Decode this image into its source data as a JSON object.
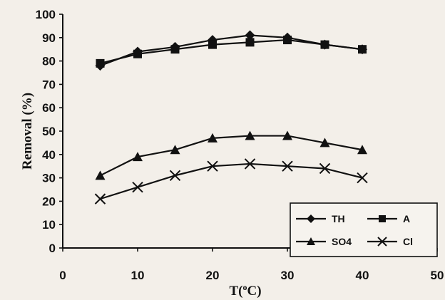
{
  "chart_data": {
    "type": "line",
    "title": "",
    "xlabel_prefix": "T(",
    "xlabel_degree": "o",
    "xlabel_suffix": "C)",
    "ylabel": "Removal (%)",
    "xlim": [
      0,
      50
    ],
    "ylim": [
      0,
      100
    ],
    "x_ticks": [
      0,
      10,
      20,
      30,
      40,
      50
    ],
    "y_ticks": [
      0,
      10,
      20,
      30,
      40,
      50,
      60,
      70,
      80,
      90,
      100
    ],
    "grid": false,
    "legend_position": "bottom-right",
    "x": [
      5,
      10,
      15,
      20,
      25,
      30,
      35,
      40
    ],
    "series": [
      {
        "name": "TH",
        "marker": "diamond",
        "values": [
          78,
          84,
          86,
          89,
          91,
          90,
          87,
          85
        ]
      },
      {
        "name": "A",
        "marker": "square",
        "values": [
          79,
          83,
          85,
          87,
          88,
          89,
          87,
          85
        ]
      },
      {
        "name": "SO4",
        "marker": "triangle",
        "values": [
          31,
          39,
          42,
          47,
          48,
          48,
          45,
          42
        ]
      },
      {
        "name": "Cl",
        "marker": "x",
        "values": [
          21,
          26,
          31,
          35,
          36,
          35,
          34,
          30
        ]
      }
    ]
  }
}
